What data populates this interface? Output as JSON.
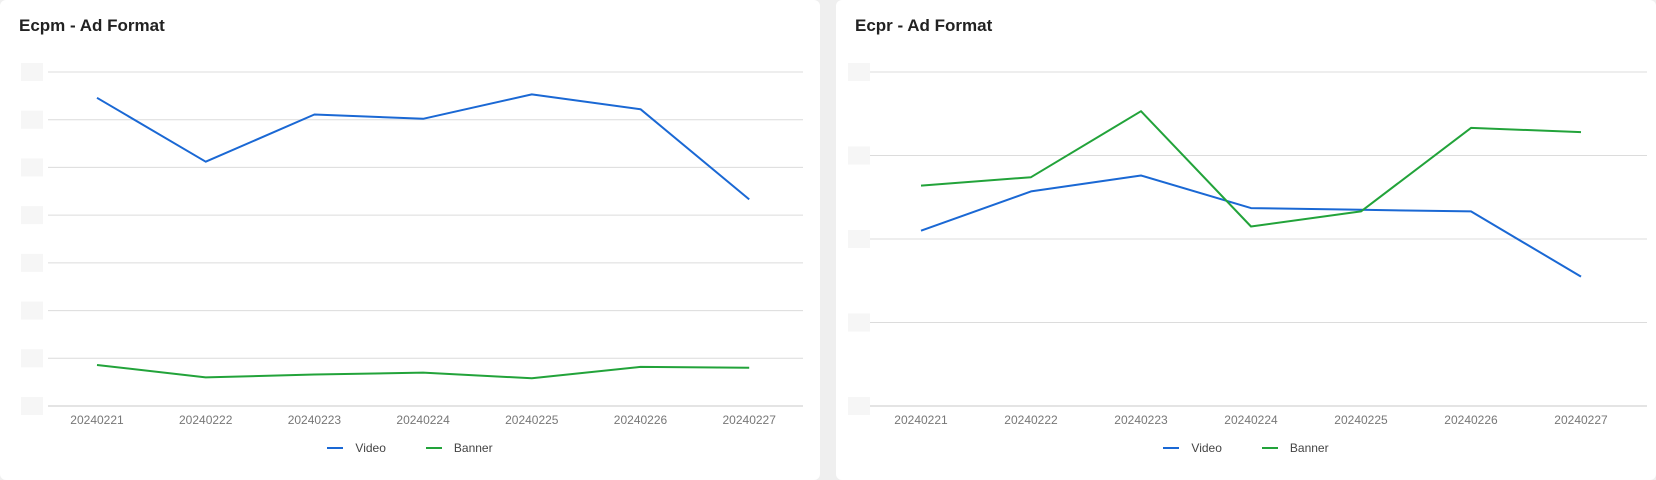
{
  "colors": {
    "video": "#1a68d4",
    "banner": "#22a33a",
    "grid": "#dcdcdc",
    "axis": "#c8c8c8"
  },
  "chart_data": [
    {
      "type": "line",
      "title": "Ecpm - Ad Format",
      "xlabel": "",
      "ylabel": "",
      "categories": [
        "20240221",
        "20240222",
        "20240223",
        "20240224",
        "20240225",
        "20240226",
        "20240227"
      ],
      "ylim": [
        0,
        7
      ],
      "grid": true,
      "legend": "bottom-center",
      "series": [
        {
          "name": "Video",
          "color": "#1a68d4",
          "values": [
            6.46,
            5.12,
            6.11,
            6.02,
            6.53,
            6.22,
            4.33
          ]
        },
        {
          "name": "Banner",
          "color": "#22a33a",
          "values": [
            0.86,
            0.6,
            0.66,
            0.7,
            0.58,
            0.82,
            0.8
          ]
        }
      ]
    },
    {
      "type": "line",
      "title": "Ecpr - Ad Format",
      "xlabel": "",
      "ylabel": "",
      "categories": [
        "20240221",
        "20240222",
        "20240223",
        "20240224",
        "20240225",
        "20240226",
        "20240227"
      ],
      "ylim": [
        0,
        4
      ],
      "grid": true,
      "legend": "bottom-center",
      "series": [
        {
          "name": "Video",
          "color": "#1a68d4",
          "values": [
            2.1,
            2.57,
            2.76,
            2.37,
            2.35,
            2.33,
            1.55
          ]
        },
        {
          "name": "Banner",
          "color": "#22a33a",
          "values": [
            2.64,
            2.74,
            3.53,
            2.15,
            2.33,
            3.33,
            3.28
          ]
        }
      ]
    }
  ]
}
